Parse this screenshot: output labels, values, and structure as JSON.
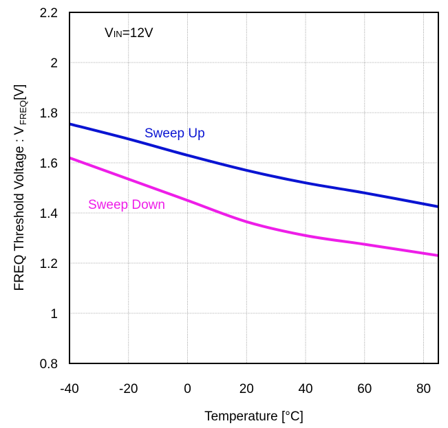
{
  "chart_data": {
    "type": "line",
    "xlabel": "Temperature [°C]",
    "ylabel": {
      "main": "FREQ Threshold Voltage : V",
      "sub": "FREQ",
      "unit": "[V]"
    },
    "xlim": [
      -40,
      85
    ],
    "ylim": [
      0.8,
      2.2
    ],
    "xticks": [
      -40,
      -20,
      0,
      20,
      40,
      60,
      80
    ],
    "yticks": [
      0.8,
      1,
      1.2,
      1.4,
      1.6,
      1.8,
      2,
      2.2
    ],
    "xtick_labels": [
      "-40",
      "-20",
      "0",
      "20",
      "40",
      "60",
      "80"
    ],
    "ytick_labels": [
      "0.8",
      "1",
      "1.2",
      "1.4",
      "1.6",
      "1.8",
      "2",
      "2.2"
    ],
    "grid": true,
    "annotation": {
      "main": "V",
      "sub": "IN",
      "rest": "=12V"
    },
    "series": [
      {
        "name": "Sweep Up",
        "color": "#0a14d2",
        "x": [
          -40,
          -20,
          0,
          20,
          40,
          60,
          85
        ],
        "y": [
          1.755,
          1.695,
          1.63,
          1.57,
          1.52,
          1.48,
          1.425
        ]
      },
      {
        "name": "Sweep Down",
        "color": "#ee1ee8",
        "x": [
          -40,
          -20,
          0,
          20,
          40,
          60,
          85
        ],
        "y": [
          1.62,
          1.535,
          1.45,
          1.365,
          1.31,
          1.275,
          1.23
        ]
      }
    ]
  }
}
